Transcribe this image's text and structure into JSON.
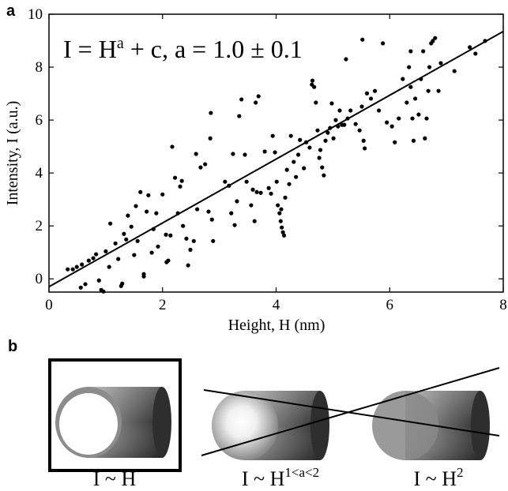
{
  "chart_data": {
    "type": "scatter",
    "panel_label": "a",
    "annotation": [
      "I = H",
      "a",
      " + c, a = 1.0 ± 0.1"
    ],
    "xlabel": "Height, H (nm)",
    "ylabel": "Intensity, I (a.u.)",
    "color": "#000000",
    "x": [
      0.33,
      0.42,
      0.49,
      0.58,
      0.56,
      0.64,
      0.7,
      0.78,
      0.83,
      0.88,
      0.92,
      0.96,
      1.0,
      1.06,
      1.08,
      1.17,
      1.22,
      1.27,
      1.29,
      1.32,
      1.36,
      1.39,
      1.45,
      1.5,
      1.53,
      1.56,
      1.61,
      1.67,
      1.67,
      1.72,
      1.75,
      1.81,
      1.84,
      1.89,
      1.92,
      2.0,
      2.06,
      2.07,
      2.1,
      2.14,
      2.17,
      2.22,
      2.27,
      2.31,
      2.34,
      2.36,
      2.42,
      2.45,
      2.49,
      2.55,
      2.59,
      2.61,
      2.67,
      2.75,
      2.81,
      2.84,
      2.85,
      2.87,
      2.89,
      3.1,
      3.17,
      3.21,
      3.24,
      3.27,
      3.31,
      3.35,
      3.39,
      3.45,
      3.48,
      3.56,
      3.59,
      3.62,
      3.64,
      3.66,
      3.69,
      3.73,
      3.8,
      3.87,
      3.91,
      3.94,
      3.98,
      4.01,
      4.03,
      4.06,
      4.08,
      4.09,
      4.1,
      4.12,
      4.14,
      4.16,
      4.19,
      4.23,
      4.26,
      4.31,
      4.35,
      4.39,
      4.42,
      4.49,
      4.53,
      4.59,
      4.63,
      4.64,
      4.67,
      4.7,
      4.73,
      4.76,
      4.78,
      4.81,
      4.84,
      4.87,
      4.91,
      4.95,
      4.98,
      5.01,
      5.05,
      5.09,
      5.12,
      5.16,
      5.2,
      5.23,
      5.26,
      5.31,
      5.4,
      5.47,
      5.51,
      5.52,
      5.54,
      5.56,
      5.6,
      5.67,
      5.74,
      5.81,
      5.88,
      5.95,
      6.04,
      6.09,
      6.16,
      6.23,
      6.3,
      6.34,
      6.37,
      6.4,
      6.42,
      6.45,
      6.51,
      6.55,
      6.59,
      6.62,
      6.65,
      6.68,
      6.7,
      6.73,
      6.76,
      6.8,
      6.86,
      6.9,
      7.14,
      7.41,
      7.51,
      7.68,
      6.37
    ],
    "y": [
      0.36,
      0.36,
      0.45,
      0.54,
      -0.33,
      -0.2,
      0.69,
      0.78,
      0.93,
      -0.06,
      -0.42,
      -0.48,
      1.04,
      0.45,
      2.09,
      1.34,
      0.75,
      -0.27,
      -0.18,
      1.7,
      1.49,
      2.39,
      1.97,
      0.9,
      2.75,
      1.43,
      3.28,
      0.09,
      0.18,
      2.54,
      3.16,
      0.99,
      1.88,
      2.48,
      1.22,
      3.19,
      1.67,
      0.63,
      0.69,
      1.64,
      4.99,
      3.82,
      2.48,
      3.49,
      3.7,
      2.0,
      1.52,
      0.51,
      1.1,
      1.43,
      4.72,
      2.63,
      4.21,
      4.33,
      2.54,
      5.31,
      6.27,
      2.24,
      1.43,
      3.67,
      3.52,
      2.48,
      4.72,
      2.03,
      2.93,
      6.15,
      6.78,
      4.69,
      3.67,
      2.78,
      3.37,
      2.18,
      6.66,
      3.28,
      6.9,
      3.25,
      4.81,
      3.43,
      3.22,
      5.4,
      4.78,
      3.67,
      2.78,
      2.48,
      2.18,
      2.63,
      1.94,
      1.76,
      1.64,
      3.07,
      4.12,
      3.58,
      5.4,
      4.42,
      3.85,
      4.69,
      5.25,
      4.18,
      5.16,
      4.96,
      7.34,
      7.49,
      7.25,
      6.66,
      5.61,
      4.57,
      4.87,
      4.21,
      3.91,
      5.22,
      5.52,
      5.7,
      6.63,
      5.31,
      6.0,
      5.76,
      6.36,
      5.82,
      5.82,
      8.3,
      6.06,
      6.36,
      5.85,
      5.61,
      6.51,
      9.04,
      5.22,
      4.93,
      7.01,
      6.81,
      7.1,
      6.36,
      8.9,
      5.91,
      5.76,
      5.16,
      6.06,
      7.55,
      6.66,
      8.0,
      7.25,
      6.06,
      5.22,
      6.81,
      6.21,
      7.55,
      8.6,
      5.31,
      6.06,
      7.1,
      8.0,
      8.9,
      8.99,
      9.1,
      7.1,
      8.15,
      7.85,
      8.75,
      8.51,
      8.99,
      8.6
    ],
    "fit": {
      "x": [
        0,
        8
      ],
      "y": [
        -0.3,
        9.35
      ]
    },
    "xlim": [
      0,
      8
    ],
    "ylim": [
      -0.5,
      10
    ],
    "xticks": [
      0,
      2,
      4,
      6,
      8
    ],
    "yticks": [
      0,
      2,
      4,
      6,
      8,
      10
    ]
  },
  "panel_b": {
    "label": "b",
    "captions": [
      {
        "base": "I ~ H"
      },
      {
        "base": "I ~ H",
        "sup": "1<a<2"
      },
      {
        "base": "I ~ H",
        "sup": "2"
      }
    ]
  }
}
